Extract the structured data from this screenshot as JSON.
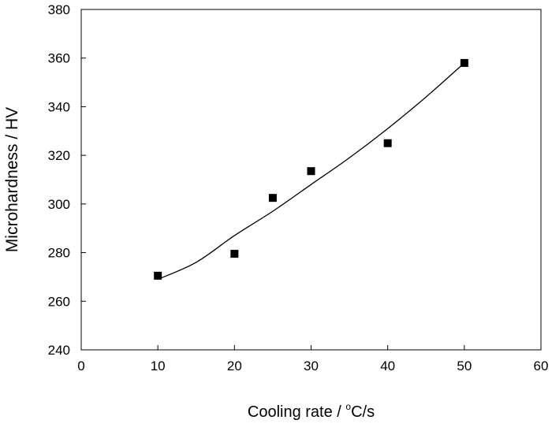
{
  "chart_data": {
    "type": "scatter",
    "title": "",
    "xlabel": "Cooling rate / ",
    "xlabel_sup": "o",
    "xlabel_unit": "C/s",
    "ylabel": "Microhardness / HV",
    "xlim": [
      0,
      60
    ],
    "ylim": [
      240,
      380
    ],
    "xticks": [
      0,
      10,
      20,
      30,
      40,
      50,
      60
    ],
    "yticks": [
      240,
      260,
      280,
      300,
      320,
      340,
      360,
      380
    ],
    "grid": false,
    "series": [
      {
        "marker": "square",
        "color": "#000000",
        "points": [
          {
            "x": 10,
            "y": 270.5
          },
          {
            "x": 20,
            "y": 279.5
          },
          {
            "x": 25,
            "y": 302.5
          },
          {
            "x": 30,
            "y": 313.5
          },
          {
            "x": 40,
            "y": 325
          },
          {
            "x": 50,
            "y": 358
          }
        ]
      }
    ],
    "fit_line": {
      "type": "curve",
      "color": "#000000",
      "points": [
        {
          "x": 10,
          "y": 269
        },
        {
          "x": 15,
          "y": 276
        },
        {
          "x": 20,
          "y": 287
        },
        {
          "x": 25,
          "y": 297
        },
        {
          "x": 30,
          "y": 308
        },
        {
          "x": 35,
          "y": 319
        },
        {
          "x": 40,
          "y": 331
        },
        {
          "x": 45,
          "y": 344
        },
        {
          "x": 50,
          "y": 358
        }
      ]
    }
  }
}
